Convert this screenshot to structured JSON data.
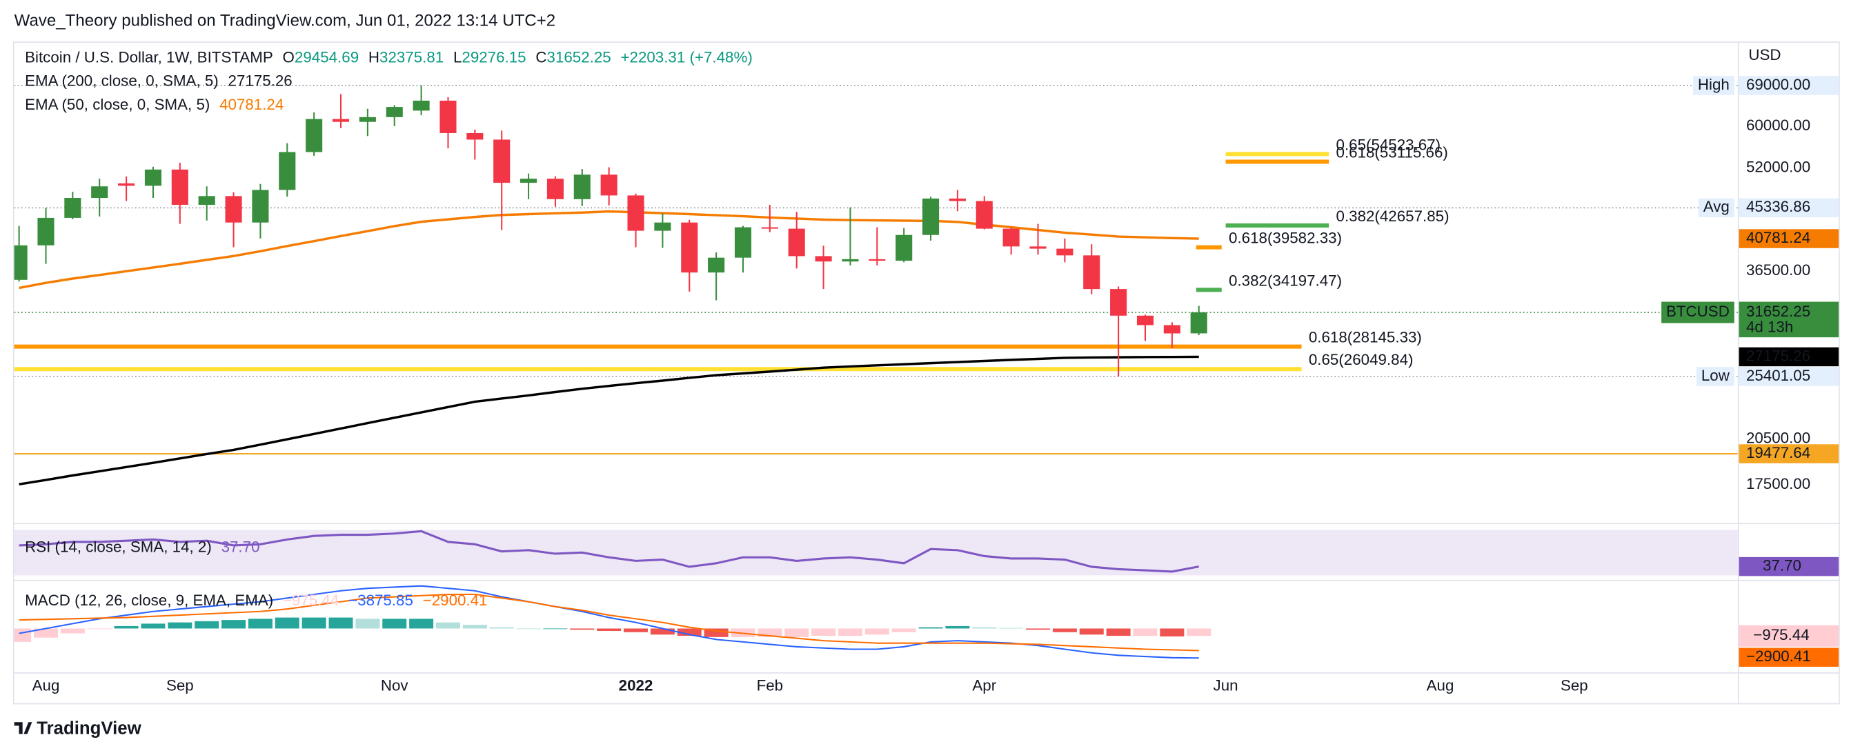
{
  "chart_data": {
    "type": "candlestick",
    "header": "Wave_Theory published on TradingView.com, Jun 01, 2022 13:14 UTC+2",
    "title": "Bitcoin / U.S. Dollar, 1W, BITSTAMP",
    "ohlc_keys": [
      "O",
      "H",
      "L",
      "C"
    ],
    "change": "+2203.31 (+7.48%)",
    "currency": "USD",
    "symbol": "BTCUSD",
    "countdown": "4d 13h",
    "footer": "TradingView",
    "log_scale": true,
    "grid": false,
    "ylim": [
      15360,
      80240
    ],
    "yticks": [
      {
        "value": 17500,
        "label": "17500.00"
      },
      {
        "value": 20500,
        "label": "20500.00"
      },
      {
        "value": 36500,
        "label": "36500.00"
      },
      {
        "value": 52000,
        "label": "52000.00"
      },
      {
        "value": 60000,
        "label": "60000.00"
      }
    ],
    "xlim": [
      -0.18,
      64.1
    ],
    "xticks": [
      {
        "value": 1,
        "label": "Aug"
      },
      {
        "value": 6,
        "label": "Sep"
      },
      {
        "value": 14,
        "label": "Nov"
      },
      {
        "value": 23,
        "label": "2022"
      },
      {
        "value": 28,
        "label": "Feb"
      },
      {
        "value": 36,
        "label": "Apr"
      },
      {
        "value": 45,
        "label": "Jun"
      },
      {
        "value": 53,
        "label": "Aug"
      },
      {
        "value": 58,
        "label": "Sep"
      }
    ],
    "up_color": "#388e3c",
    "down_color": "#f23645",
    "open": [
      35400,
      39850,
      43800,
      46900,
      49300,
      48900,
      51700,
      45800,
      47200,
      43100,
      48200,
      54900,
      61500,
      60900,
      61900,
      63300,
      65500,
      58600,
      57300,
      49400,
      50100,
      46700,
      50800,
      47300,
      41900,
      43100,
      36300,
      38200,
      42400,
      42200,
      38400,
      37700,
      38000,
      37800,
      41300,
      46800,
      46400,
      42200,
      39700,
      39400,
      38500,
      34300,
      31300,
      30300,
      29454.69
    ],
    "high": [
      42600,
      45300,
      47900,
      50100,
      50500,
      52200,
      52900,
      48800,
      47800,
      49200,
      56600,
      62900,
      67000,
      63700,
      64500,
      69000,
      66300,
      59300,
      59100,
      51000,
      50500,
      51800,
      52100,
      47600,
      44500,
      43500,
      38900,
      42600,
      45800,
      44700,
      39800,
      45400,
      42400,
      42300,
      47100,
      48200,
      47200,
      42400,
      42900,
      40800,
      40000,
      34600,
      31400,
      30600,
      32375.81
    ],
    "low": [
      35200,
      37400,
      43600,
      44000,
      46400,
      46900,
      42900,
      43400,
      39600,
      40800,
      47100,
      54200,
      59600,
      58000,
      60000,
      62300,
      55600,
      53500,
      42000,
      46700,
      45500,
      45600,
      45700,
      39600,
      39500,
      34000,
      33000,
      36300,
      41700,
      36800,
      34300,
      37200,
      37200,
      37600,
      40500,
      44800,
      42100,
      38600,
      38600,
      37600,
      33700,
      25401.05,
      28700,
      28000,
      29276.15
    ],
    "close": [
      39850,
      43800,
      46900,
      48800,
      48900,
      51700,
      45800,
      47200,
      43100,
      48200,
      54900,
      61500,
      60900,
      61900,
      64100,
      65500,
      58600,
      57300,
      49400,
      50100,
      46700,
      50800,
      47300,
      41900,
      43100,
      36300,
      38200,
      42400,
      42200,
      38400,
      37700,
      38000,
      37800,
      41300,
      46800,
      46400,
      42200,
      39700,
      39400,
      38500,
      34300,
      31300,
      30300,
      29450,
      31652.25
    ],
    "series": [
      {
        "name": "EMA (200, close, 0, SMA, 5)",
        "color": "#000000",
        "values": [
          17540,
          17800,
          18080,
          18340,
          18610,
          18880,
          19170,
          19460,
          19740,
          20100,
          20470,
          20850,
          21240,
          21640,
          22040,
          22450,
          22870,
          23290,
          23550,
          23800,
          24080,
          24350,
          24590,
          24820,
          25040,
          25280,
          25510,
          25670,
          25830,
          26000,
          26180,
          26290,
          26390,
          26490,
          26590,
          26690,
          26790,
          26890,
          26980,
          27080,
          27110,
          27130,
          27150,
          27160,
          27175.26
        ]
      },
      {
        "name": "EMA (50, close, 0, SMA, 5)",
        "color": "#f57c00",
        "values": [
          34430,
          35030,
          35550,
          35990,
          36460,
          36930,
          37410,
          37910,
          38410,
          39050,
          39750,
          40430,
          41140,
          41840,
          42570,
          43210,
          43570,
          43930,
          44230,
          44360,
          44490,
          44600,
          44770,
          44650,
          44510,
          44360,
          44200,
          44040,
          43850,
          43690,
          43530,
          43460,
          43420,
          43380,
          43340,
          43190,
          42790,
          42410,
          42010,
          41620,
          41350,
          41070,
          40960,
          40850,
          40781.24
        ]
      }
    ],
    "markers": [
      {
        "name": "High",
        "value": 69000,
        "label": "69000.00"
      },
      {
        "name": "Avg",
        "value": 45336.86,
        "label": "45336.86"
      },
      {
        "name": "Low",
        "value": 25401.05,
        "label": "25401.05"
      }
    ],
    "hlines": [
      {
        "value": 19477.64,
        "label": "19477.64",
        "color": "#f5a623"
      }
    ],
    "fib_levels": [
      {
        "value": 54523.67,
        "label": "0.65(54523.67)",
        "color": "#ffe033"
      },
      {
        "value": 53115.66,
        "label": "0.618(53115.66)",
        "color": "#ff9800"
      },
      {
        "value": 42657.85,
        "label": "0.382(42657.85)",
        "color": "#4caf50"
      },
      {
        "value": 39582.33,
        "label": "0.618(39582.33)",
        "color": "#ff9800"
      },
      {
        "value": 34197.47,
        "label": "0.382(34197.47)",
        "color": "#4caf50"
      },
      {
        "value": 28145.33,
        "label": "0.618(28145.33)",
        "color": "#ff9800"
      },
      {
        "value": 26049.84,
        "label": "0.65(26049.84)",
        "color": "#ffe033"
      }
    ],
    "rsi": {
      "title": "RSI (14, close, SMA, 14, 2)",
      "color": "#7e57c2",
      "band_color": "#ede7f6",
      "ylim": [
        25,
        75
      ],
      "band": [
        30,
        70
      ],
      "values": [
        56.3,
        57.3,
        59.4,
        59.4,
        60.4,
        61.5,
        59.4,
        60.4,
        56.3,
        57.3,
        61.5,
        64.6,
        65.6,
        65.6,
        66.7,
        68.8,
        59.4,
        57.3,
        51.0,
        52.1,
        49.0,
        50.0,
        45.8,
        42.7,
        43.8,
        37.5,
        40.6,
        45.8,
        45.8,
        42.7,
        44.8,
        45.8,
        43.8,
        40.6,
        53.1,
        52.1,
        46.9,
        44.8,
        44.8,
        43.8,
        37.5,
        35.4,
        34.4,
        33.3,
        37.7
      ],
      "last_label": "37.70"
    },
    "macd": {
      "title": "MACD (12, 26, close, 9, EMA, EMA)",
      "ylim": [
        -5600,
        6240
      ],
      "histogram": {
        "colors": [
          "#26a69a",
          "#b2dfdb",
          "#ffcdd2",
          "#ef5350"
        ],
        "values": [
          -1760,
          -1200,
          -640,
          -80,
          320,
          640,
          800,
          960,
          1120,
          1280,
          1440,
          1440,
          1440,
          1280,
          1280,
          1280,
          800,
          480,
          160,
          0,
          0,
          -160,
          -320,
          -480,
          -800,
          -960,
          -1120,
          -1120,
          -1120,
          -1120,
          -960,
          -960,
          -800,
          -480,
          160,
          320,
          160,
          80,
          -160,
          -480,
          -800,
          -960,
          -960,
          -1040,
          -975.44
        ],
        "last_label": "−975.44"
      },
      "macd_line": {
        "color": "#2962ff",
        "values": [
          -640,
          0,
          640,
          1280,
          1760,
          2240,
          2560,
          2880,
          3200,
          3520,
          4000,
          4480,
          4960,
          5280,
          5440,
          5600,
          5280,
          4960,
          4160,
          3520,
          2880,
          2240,
          1440,
          800,
          0,
          -800,
          -1440,
          -1760,
          -2080,
          -2400,
          -2560,
          -2720,
          -2720,
          -2400,
          -1760,
          -1600,
          -1760,
          -1920,
          -2240,
          -2720,
          -3200,
          -3520,
          -3680,
          -3840,
          -3875.85
        ],
        "last_label": "−3875.85"
      },
      "signal": {
        "color": "#ff6d00",
        "values": [
          1120,
          1200,
          1280,
          1360,
          1440,
          1600,
          1760,
          1920,
          2080,
          2240,
          2560,
          3040,
          3520,
          4000,
          4160,
          4320,
          4480,
          4480,
          4000,
          3520,
          2880,
          2400,
          1760,
          1280,
          800,
          160,
          -320,
          -640,
          -960,
          -1280,
          -1600,
          -1760,
          -1920,
          -1920,
          -1920,
          -1920,
          -1920,
          -2000,
          -2080,
          -2240,
          -2400,
          -2560,
          -2720,
          -2800,
          -2900.41
        ],
        "last_label": "−2900.41"
      }
    }
  }
}
